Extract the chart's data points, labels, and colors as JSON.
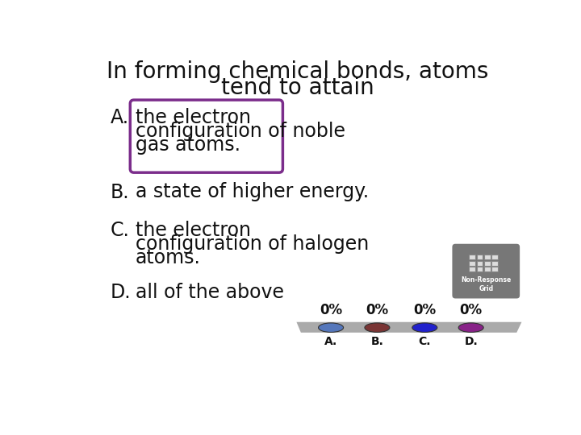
{
  "title_line1": "In forming chemical bonds, atoms",
  "title_line2": "tend to attain",
  "highlight_color": "#7B2D8B",
  "highlight_fill": "#FFFFFF",
  "percent_labels": [
    "0%",
    "0%",
    "0%",
    "0%"
  ],
  "option_letters_bottom": [
    "A.",
    "B.",
    "C.",
    "D."
  ],
  "dot_colors": [
    "#5577BB",
    "#7A3535",
    "#2222CC",
    "#882288"
  ],
  "bar_color": "#AAAAAA",
  "background_color": "#FFFFFF",
  "title_fontsize": 20,
  "option_fontsize": 17,
  "text_color": "#111111",
  "grid_bg_color": "#777777",
  "grid_cell_color": "#CCCCCC",
  "nrg_text_color": "#FFFFFF"
}
